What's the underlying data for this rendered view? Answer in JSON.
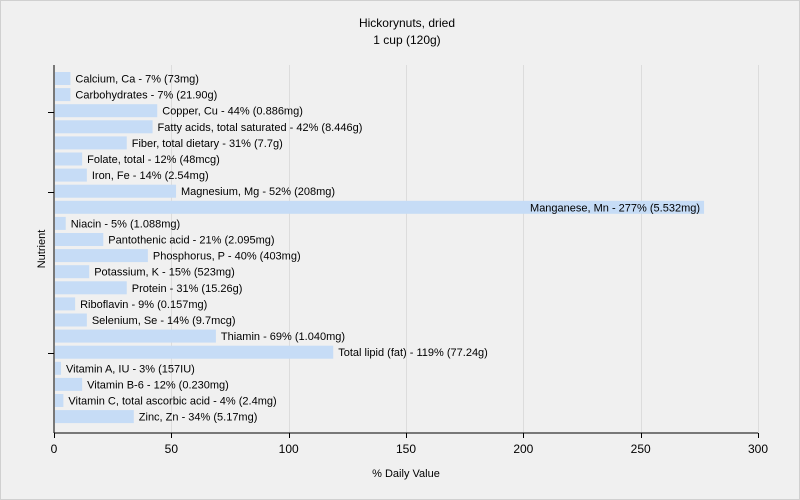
{
  "chart_data": {
    "type": "bar",
    "orientation": "horizontal",
    "title": "Hickorynuts, dried",
    "subtitle": "1 cup (120g)",
    "xlabel": "% Daily Value",
    "ylabel": "Nutrient",
    "xlim": [
      0,
      300
    ],
    "xticks": [
      0,
      50,
      100,
      150,
      200,
      250,
      300
    ],
    "grid": true,
    "colors": {
      "bar": "#c6dcf6",
      "background": "#f0f0f0",
      "grid": "#dcdcdc"
    },
    "categories": [
      "Calcium, Ca",
      "Carbohydrates",
      "Copper, Cu",
      "Fatty acids, total saturated",
      "Fiber, total dietary",
      "Folate, total",
      "Iron, Fe",
      "Magnesium, Mg",
      "Manganese, Mn",
      "Niacin",
      "Pantothenic acid",
      "Phosphorus, P",
      "Potassium, K",
      "Protein",
      "Riboflavin",
      "Selenium, Se",
      "Thiamin",
      "Total lipid (fat)",
      "Vitamin A, IU",
      "Vitamin B-6",
      "Vitamin C, total ascorbic acid",
      "Zinc, Zn"
    ],
    "values": [
      7,
      7,
      44,
      42,
      31,
      12,
      14,
      52,
      277,
      5,
      21,
      40,
      15,
      31,
      9,
      14,
      69,
      119,
      3,
      12,
      4,
      34
    ],
    "labels": [
      "Calcium, Ca - 7% (73mg)",
      "Carbohydrates - 7% (21.90g)",
      "Copper, Cu - 44% (0.886mg)",
      "Fatty acids, total saturated - 42% (8.446g)",
      "Fiber, total dietary - 31% (7.7g)",
      "Folate, total - 12% (48mcg)",
      "Iron, Fe - 14% (2.54mg)",
      "Magnesium, Mg - 52% (208mg)",
      "Manganese, Mn - 277% (5.532mg)",
      "Niacin - 5% (1.088mg)",
      "Pantothenic acid - 21% (2.095mg)",
      "Phosphorus, P - 40% (403mg)",
      "Potassium, K - 15% (523mg)",
      "Protein - 31% (15.26g)",
      "Riboflavin - 9% (0.157mg)",
      "Selenium, Se - 14% (9.7mcg)",
      "Thiamin - 69% (1.040mg)",
      "Total lipid (fat) - 119% (77.24g)",
      "Vitamin A, IU - 3% (157IU)",
      "Vitamin B-6 - 12% (0.230mg)",
      "Vitamin C, total ascorbic acid - 4% (2.4mg)",
      "Zinc, Zn - 34% (5.17mg)"
    ]
  }
}
